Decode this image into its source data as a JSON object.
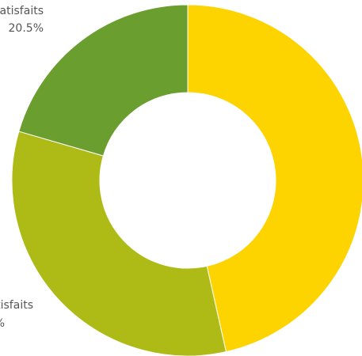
{
  "chart_data": {
    "type": "pie",
    "variant": "donut",
    "slices": [
      {
        "label": "",
        "value": 46.5,
        "color": "#FDD300"
      },
      {
        "label": "satisfaits",
        "value": 33.0,
        "value_label": "%",
        "color": "#AEBB17"
      },
      {
        "label": "u satisfaits",
        "value": 20.5,
        "value_label": "20.5%",
        "color": "#6A9E2E"
      }
    ],
    "start_angle_deg": 0,
    "direction": "clockwise",
    "legend": "none"
  }
}
